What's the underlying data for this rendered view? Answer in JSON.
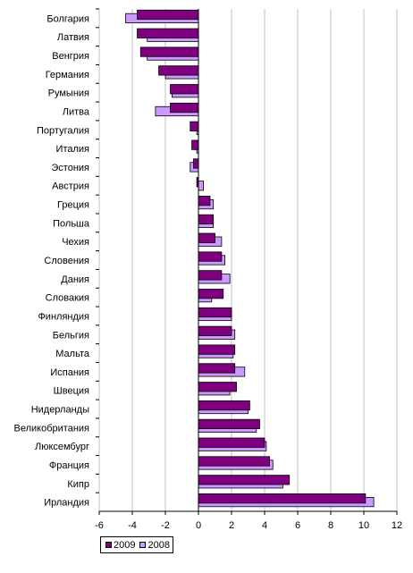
{
  "chart_data": {
    "type": "bar",
    "orientation": "horizontal",
    "categories": [
      "Болгария",
      "Латвия",
      "Венгрия",
      "Германия",
      "Румыния",
      "Литва",
      "Португалия",
      "Италия",
      "Эстония",
      "Австрия",
      "Греция",
      "Польша",
      "Чехия",
      "Словения",
      "Дания",
      "Словакия",
      "Финляндия",
      "Бельгия",
      "Мальта",
      "Испания",
      "Швеция",
      "Нидерланды",
      "Великобритания",
      "Люксембург",
      "Франция",
      "Кипр",
      "Ирландия"
    ],
    "series": [
      {
        "name": "2009",
        "color": "#7f007f",
        "values": [
          -3.7,
          -3.7,
          -3.5,
          -2.4,
          -1.7,
          -1.7,
          -0.5,
          -0.4,
          -0.3,
          -0.1,
          0.7,
          0.9,
          1.0,
          1.4,
          1.4,
          1.5,
          2.0,
          2.0,
          2.2,
          2.2,
          2.3,
          3.1,
          3.7,
          4.0,
          4.3,
          5.5,
          10.1
        ]
      },
      {
        "name": "2008",
        "color": "#cc99ff",
        "values": [
          -4.4,
          -3.1,
          -3.1,
          -2.0,
          -1.6,
          -2.6,
          -0.1,
          -0.1,
          -0.5,
          0.3,
          0.9,
          0.9,
          1.4,
          1.6,
          1.9,
          0.8,
          2.0,
          2.2,
          2.1,
          2.8,
          1.9,
          3.0,
          3.5,
          4.1,
          4.5,
          5.1,
          10.6
        ]
      }
    ],
    "xlim": [
      -6,
      12
    ],
    "xticks": [
      "-6",
      "-4",
      "-2",
      "0",
      "2",
      "4",
      "6",
      "8",
      "10",
      "12"
    ],
    "grid": true,
    "legend": "bottom-left"
  }
}
